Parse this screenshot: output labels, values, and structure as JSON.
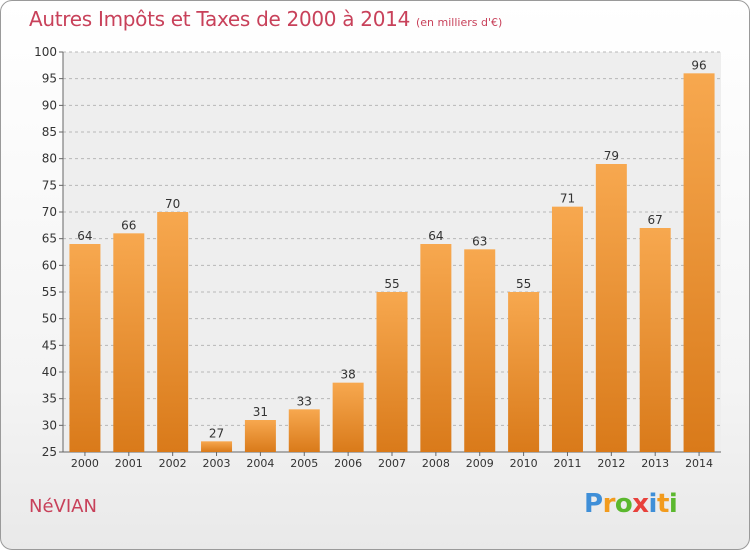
{
  "header": {
    "title": "Autres Impôts et Taxes de 2000 à 2014",
    "unit": "(en milliers d'€)"
  },
  "footer": {
    "commune": "NéVIAN",
    "brand_letters": [
      {
        "ch": "P",
        "color": "#3f8fd8"
      },
      {
        "ch": "r",
        "color": "#f29b1d"
      },
      {
        "ch": "o",
        "color": "#5bb82e"
      },
      {
        "ch": "x",
        "color": "#e8413c"
      },
      {
        "ch": "i",
        "color": "#3f8fd8"
      },
      {
        "ch": "t",
        "color": "#f29b1d"
      },
      {
        "ch": "i",
        "color": "#5bb82e"
      }
    ]
  },
  "colors": {
    "bar_light": "#f7a84f",
    "bar_dark": "#d97a1a",
    "accent": "#c8415a"
  },
  "chart_data": {
    "type": "bar",
    "categories": [
      "2000",
      "2001",
      "2002",
      "2003",
      "2004",
      "2005",
      "2006",
      "2007",
      "2008",
      "2009",
      "2010",
      "2011",
      "2012",
      "2013",
      "2014"
    ],
    "values": [
      64,
      66,
      70,
      27,
      31,
      33,
      38,
      55,
      64,
      63,
      55,
      71,
      79,
      67,
      96
    ],
    "ylim": [
      25,
      100
    ],
    "yticks": [
      25,
      30,
      35,
      40,
      45,
      50,
      55,
      60,
      65,
      70,
      75,
      80,
      85,
      90,
      95,
      100
    ],
    "grid": "horizontal dashed",
    "data_labels": true
  }
}
